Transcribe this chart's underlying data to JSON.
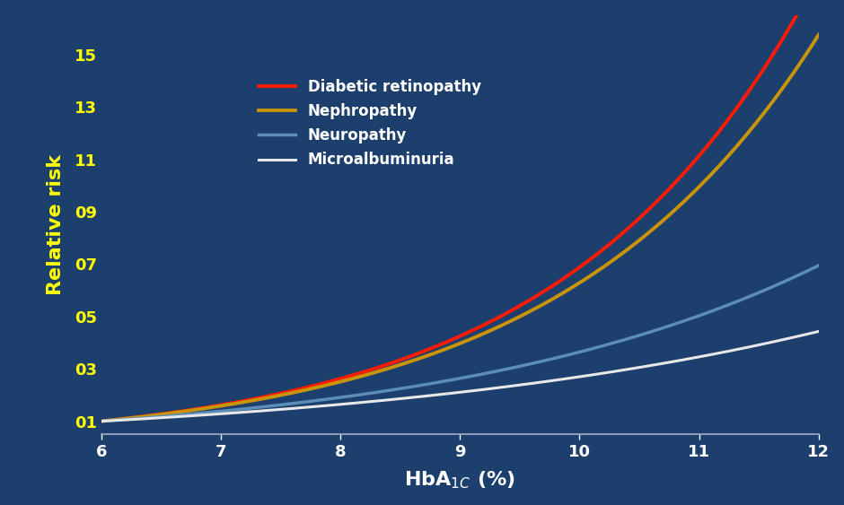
{
  "background_color": "#1c3f6e",
  "plot_bg_color": "#1c3f6e",
  "xlabel": "HbA$_{1C}$ (%)",
  "ylabel": "Relative risk",
  "xlabel_color": "#ffffff",
  "ylabel_color": "#ffff00",
  "tick_label_color": "#ffff00",
  "xtick_label_color": "#ffffff",
  "xlim": [
    6,
    12
  ],
  "ylim": [
    0.5,
    16.5
  ],
  "yticks": [
    1,
    3,
    5,
    7,
    9,
    11,
    13,
    15
  ],
  "ytick_labels": [
    "01",
    "03",
    "05",
    "07",
    "09",
    "11",
    "13",
    "15"
  ],
  "xticks": [
    6,
    7,
    8,
    9,
    10,
    11,
    12
  ],
  "lines": [
    {
      "label": "Diabetic retinopathy",
      "color": "#ff1a00",
      "linewidth": 2.8,
      "k": 0.482
    },
    {
      "label": "Nephropathy",
      "color": "#c8940a",
      "linewidth": 2.8,
      "k": 0.4595
    },
    {
      "label": "Neuropathy",
      "color": "#5b8db8",
      "linewidth": 2.5,
      "k": 0.323
    },
    {
      "label": "Microalbuminuria",
      "color": "#e8e8e8",
      "linewidth": 2.2,
      "k": 0.248
    }
  ],
  "legend_fontsize": 12,
  "legend_text_color": "#ffffff",
  "axis_line_color": "#aaaacc",
  "tick_fontsize": 13,
  "label_fontsize": 15
}
